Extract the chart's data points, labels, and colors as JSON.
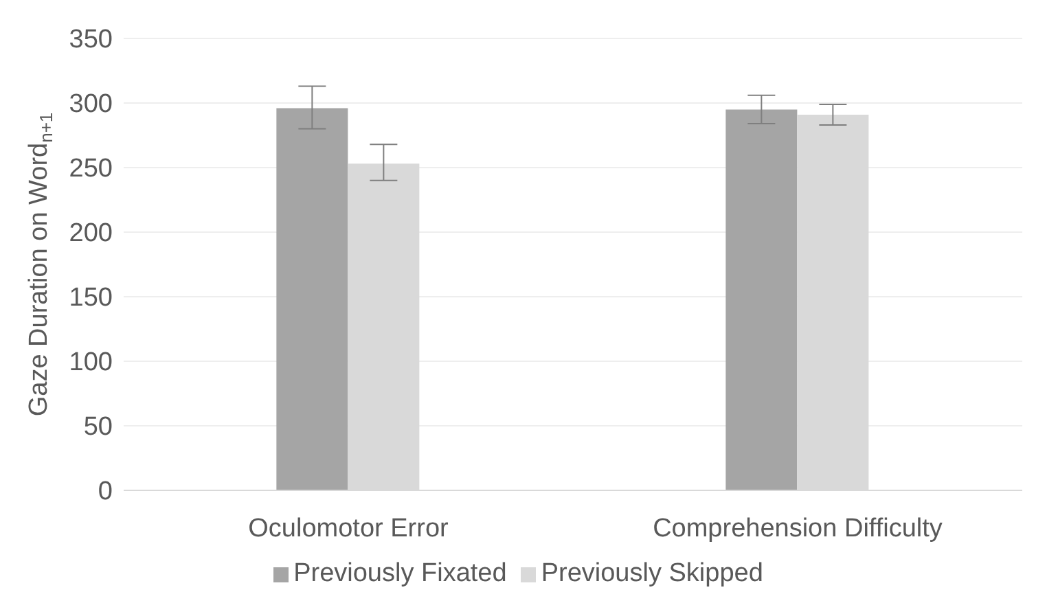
{
  "chart_data": {
    "type": "bar",
    "ylabel": "Gaze Duration on Word$_{n+1}$",
    "categories": [
      "Oculomotor Error",
      "Comprehension Difficulty"
    ],
    "series": [
      {
        "name": "Previously Fixated",
        "color": "#a5a5a5",
        "values": [
          296,
          295
        ],
        "errors": [
          [
            280,
            313
          ],
          [
            284,
            306
          ]
        ]
      },
      {
        "name": "Previously Skipped",
        "color": "#d9d9d9",
        "values": [
          253,
          291
        ],
        "errors": [
          [
            240,
            268
          ],
          [
            283,
            299
          ]
        ]
      }
    ],
    "ylim": [
      0,
      350
    ],
    "yticks": [
      0,
      50,
      100,
      150,
      200,
      250,
      300,
      350
    ],
    "grid": "y",
    "legend": "bottom"
  }
}
